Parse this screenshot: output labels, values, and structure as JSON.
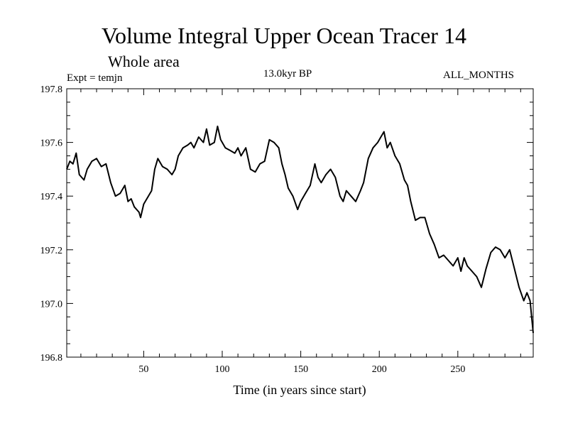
{
  "header": {
    "title": "Volume Integral Upper Ocean Tracer 14",
    "subtitle": "Whole area",
    "experiment": "Expt = temjn",
    "period": "13.0kyr BP",
    "months": "ALL_MONTHS"
  },
  "chart_data": {
    "type": "line",
    "title": "Volume Integral Upper Ocean Tracer 14",
    "subtitle": "Whole area",
    "xlabel": "Time (in years since start)",
    "ylabel": "",
    "xlim": [
      1,
      298
    ],
    "ylim": [
      196.8,
      197.8
    ],
    "x_ticks": [
      50,
      100,
      150,
      200,
      250
    ],
    "y_ticks": [
      196.8,
      197.0,
      197.2,
      197.4,
      197.6,
      197.8
    ],
    "y_tick_labels": [
      "196.8",
      "197.0",
      "197.2",
      "197.4",
      "197.6",
      "197.8"
    ],
    "grid": false,
    "series": [
      {
        "name": "Tracer 14",
        "color": "#000000",
        "x": [
          1,
          3,
          5,
          7,
          9,
          12,
          14,
          17,
          20,
          23,
          26,
          29,
          32,
          35,
          38,
          40,
          42,
          44,
          47,
          48,
          50,
          52,
          55,
          57,
          59,
          62,
          65,
          68,
          70,
          72,
          75,
          78,
          80,
          82,
          85,
          88,
          90,
          92,
          95,
          97,
          99,
          102,
          105,
          108,
          110,
          112,
          115,
          118,
          121,
          124,
          127,
          130,
          133,
          136,
          138,
          140,
          142,
          145,
          148,
          150,
          153,
          156,
          159,
          161,
          163,
          166,
          169,
          172,
          175,
          177,
          179,
          182,
          185,
          188,
          190,
          193,
          196,
          199,
          201,
          203,
          205,
          207,
          210,
          213,
          216,
          218,
          220,
          223,
          226,
          229,
          232,
          235,
          238,
          241,
          244,
          247,
          250,
          252,
          254,
          256,
          259,
          262,
          265,
          268,
          271,
          274,
          277,
          280,
          283,
          286,
          289,
          292,
          294,
          296,
          298
        ],
        "y": [
          197.5,
          197.53,
          197.52,
          197.56,
          197.48,
          197.46,
          197.5,
          197.53,
          197.54,
          197.51,
          197.52,
          197.45,
          197.4,
          197.41,
          197.44,
          197.38,
          197.39,
          197.36,
          197.34,
          197.32,
          197.37,
          197.39,
          197.42,
          197.5,
          197.54,
          197.51,
          197.5,
          197.48,
          197.5,
          197.55,
          197.58,
          197.59,
          197.6,
          197.58,
          197.62,
          197.6,
          197.65,
          197.59,
          197.6,
          197.66,
          197.61,
          197.58,
          197.57,
          197.56,
          197.58,
          197.55,
          197.58,
          197.5,
          197.49,
          197.52,
          197.53,
          197.61,
          197.6,
          197.58,
          197.52,
          197.48,
          197.43,
          197.4,
          197.35,
          197.38,
          197.41,
          197.44,
          197.52,
          197.47,
          197.45,
          197.48,
          197.5,
          197.47,
          197.4,
          197.38,
          197.42,
          197.4,
          197.38,
          197.42,
          197.45,
          197.54,
          197.58,
          197.6,
          197.62,
          197.64,
          197.58,
          197.6,
          197.55,
          197.52,
          197.46,
          197.44,
          197.38,
          197.31,
          197.32,
          197.32,
          197.26,
          197.22,
          197.17,
          197.18,
          197.16,
          197.14,
          197.17,
          197.12,
          197.17,
          197.14,
          197.12,
          197.1,
          197.06,
          197.13,
          197.19,
          197.21,
          197.2,
          197.17,
          197.2,
          197.13,
          197.06,
          197.01,
          197.04,
          197.01,
          196.89
        ]
      }
    ]
  }
}
